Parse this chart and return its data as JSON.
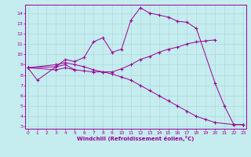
{
  "xlabel": "Windchill (Refroidissement éolien,°C)",
  "yticks": [
    3,
    4,
    5,
    6,
    7,
    8,
    9,
    10,
    11,
    12,
    13,
    14
  ],
  "xticks": [
    0,
    1,
    2,
    3,
    4,
    5,
    6,
    7,
    8,
    9,
    10,
    11,
    12,
    13,
    14,
    15,
    16,
    17,
    18,
    19,
    20,
    21,
    22,
    23
  ],
  "bg_color": "#c5ecee",
  "line_color": "#990099",
  "lines": [
    {
      "x": [
        0,
        1,
        3,
        4,
        5
      ],
      "y": [
        8.7,
        7.5,
        8.8,
        9.0,
        8.5
      ]
    },
    {
      "x": [
        0,
        3,
        4,
        5,
        6,
        7,
        8,
        9,
        10,
        11,
        12,
        13,
        14,
        15,
        16,
        17,
        18,
        20,
        21,
        22,
        23
      ],
      "y": [
        8.7,
        8.8,
        9.5,
        9.3,
        9.7,
        11.2,
        11.6,
        10.2,
        10.5,
        13.3,
        14.5,
        14.0,
        13.8,
        13.6,
        13.2,
        13.1,
        12.5,
        7.2,
        5.0,
        3.2,
        3.2
      ]
    },
    {
      "x": [
        0,
        3,
        4,
        5,
        6,
        7,
        8,
        9,
        10,
        11,
        12,
        13,
        14,
        15,
        16,
        17,
        18,
        19,
        20
      ],
      "y": [
        8.7,
        8.5,
        8.7,
        8.5,
        8.4,
        8.3,
        8.3,
        8.3,
        8.6,
        9.0,
        9.5,
        9.8,
        10.2,
        10.5,
        10.7,
        11.0,
        11.2,
        11.3,
        11.4
      ]
    },
    {
      "x": [
        0,
        3,
        4,
        5,
        6,
        7,
        8,
        9,
        10,
        11,
        12,
        13,
        14,
        15,
        16,
        17,
        18,
        19,
        20,
        22,
        23
      ],
      "y": [
        8.7,
        9.0,
        9.2,
        9.0,
        8.8,
        8.5,
        8.3,
        8.1,
        7.8,
        7.5,
        7.0,
        6.5,
        6.0,
        5.5,
        5.0,
        4.5,
        4.0,
        3.7,
        3.4,
        3.2,
        3.2
      ]
    }
  ]
}
